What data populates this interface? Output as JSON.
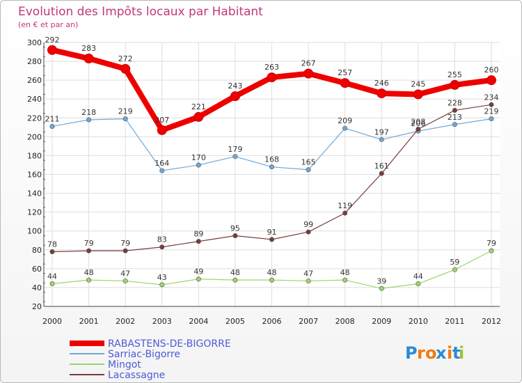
{
  "chart_data": {
    "type": "line",
    "title": "Evolution des Impôts locaux par Habitant",
    "subtitle": "(en € et par an)",
    "xlabel": "",
    "ylabel": "",
    "ylim": [
      20,
      300
    ],
    "yticks": [
      20,
      40,
      60,
      80,
      100,
      120,
      140,
      160,
      180,
      200,
      220,
      240,
      260,
      280,
      300
    ],
    "grid": true,
    "legend_position": "bottom-left",
    "x": [
      "2000",
      "2001",
      "2002",
      "2003",
      "2004",
      "2005",
      "2006",
      "2007",
      "2008",
      "2009",
      "2010",
      "2011",
      "2012"
    ],
    "series": [
      {
        "name": "RABASTENS-DE-BIGORRE",
        "color": "#ee0000",
        "values": [
          292,
          283,
          272,
          207,
          221,
          243,
          263,
          267,
          257,
          246,
          245,
          255,
          260
        ]
      },
      {
        "name": "Sarriac-Bigorre",
        "color": "#6fa8d6",
        "values": [
          211,
          218,
          219,
          164,
          170,
          179,
          168,
          165,
          209,
          197,
          206,
          213,
          219
        ]
      },
      {
        "name": "Mingot",
        "color": "#9ad66a",
        "values": [
          44,
          48,
          47,
          43,
          49,
          48,
          48,
          47,
          48,
          39,
          44,
          59,
          79
        ]
      },
      {
        "name": "Lacassagne",
        "color": "#7a3b3b",
        "values": [
          78,
          79,
          79,
          83,
          89,
          95,
          91,
          99,
          119,
          161,
          208,
          228,
          234
        ]
      }
    ]
  },
  "branding": {
    "logo_letters": [
      "P",
      "r",
      "o",
      "x",
      "i",
      "t",
      "i"
    ],
    "logo_colors": [
      "#2a8ad6",
      "#f07a10",
      "#f07a10",
      "#2a8ad6",
      "#f07a10",
      "#2a8ad6",
      "#9ac43a"
    ]
  }
}
